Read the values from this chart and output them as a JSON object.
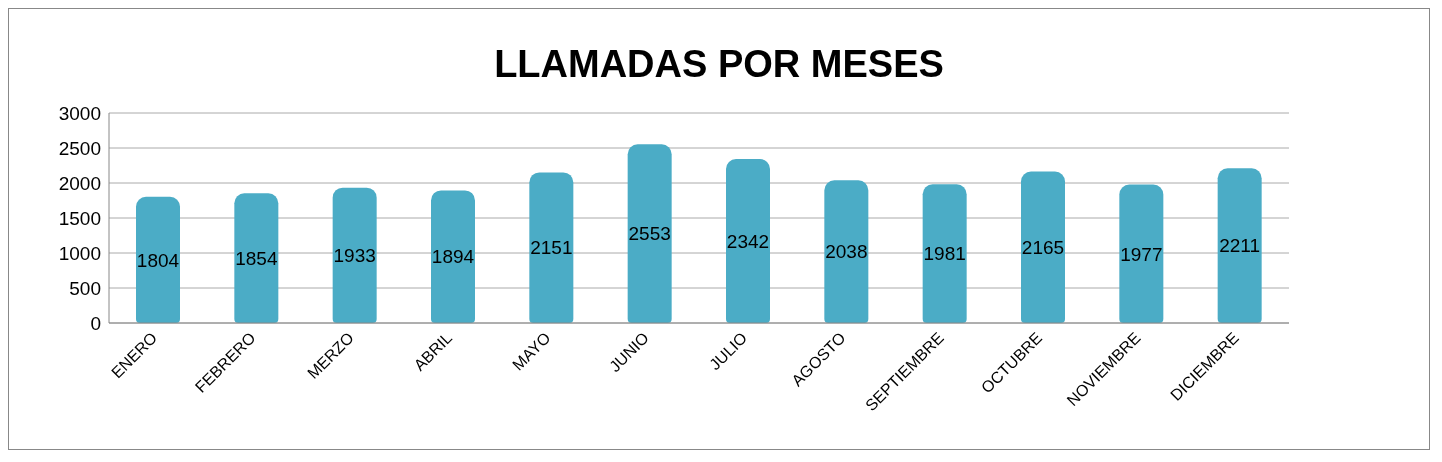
{
  "chart_data": {
    "type": "bar",
    "title": "LLAMADAS POR MESES",
    "categories": [
      "ENERO",
      "FEBRERO",
      "MERZO",
      "ABRIL",
      "MAYO",
      "JUNIO",
      "JULIO",
      "AGOSTO",
      "SEPTIEMBRE",
      "OCTUBRE",
      "NOVIEMBRE",
      "DICIEMBRE"
    ],
    "values": [
      1804,
      1854,
      1933,
      1894,
      2151,
      2553,
      2342,
      2038,
      1981,
      2165,
      1977,
      2211
    ],
    "color": "#4bacc6",
    "ylim": [
      0,
      3000
    ],
    "yticks": [
      0,
      500,
      1000,
      1500,
      2000,
      2500,
      3000
    ],
    "grid": "y",
    "data_labels": true
  }
}
